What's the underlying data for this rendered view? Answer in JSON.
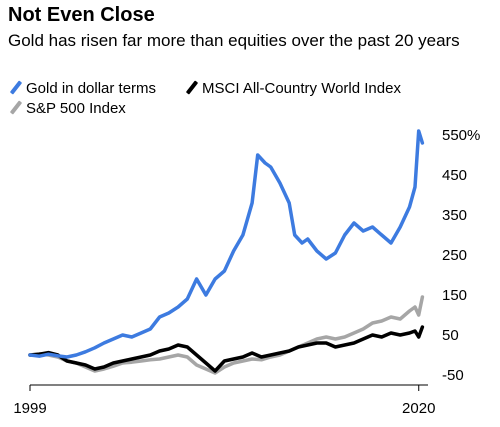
{
  "header": {
    "title": "Not Even Close",
    "subtitle": "Gold has risen far more than equities over the past 20 years"
  },
  "colors": {
    "gold": "#3d7be0",
    "msci": "#000000",
    "sp500": "#a6a6a6",
    "axis": "#000000"
  },
  "chart_data": {
    "type": "line",
    "title": "Not Even Close",
    "subtitle": "Gold has risen far more than equities over the past 20 years",
    "xlabel": "",
    "ylabel": "",
    "xlim": [
      1999,
      2020.5
    ],
    "ylim": [
      -75,
      575
    ],
    "y_ticks": [
      550,
      450,
      350,
      250,
      150,
      50,
      -50
    ],
    "y_tick_labels": [
      "550%",
      "450",
      "350",
      "250",
      "150",
      "50",
      "-50"
    ],
    "x_tick_labels": [
      "1999",
      "2020"
    ],
    "x_ticks": [
      1999,
      2020
    ],
    "grid": false,
    "legend_position": "top-left",
    "series": [
      {
        "name": "Gold in dollar terms",
        "color": "#3d7be0",
        "x": [
          1999,
          1999.5,
          2000,
          2000.5,
          2001,
          2001.5,
          2002,
          2002.5,
          2003,
          2003.5,
          2004,
          2004.5,
          2005,
          2005.5,
          2006,
          2006.5,
          2007,
          2007.5,
          2008,
          2008.5,
          2009,
          2009.5,
          2010,
          2010.5,
          2011,
          2011.3,
          2011.7,
          2012,
          2012.5,
          2013,
          2013.3,
          2013.7,
          2014,
          2014.5,
          2015,
          2015.5,
          2016,
          2016.5,
          2017,
          2017.5,
          2018,
          2018.5,
          2019,
          2019.5,
          2019.8,
          2020,
          2020.2
        ],
        "y": [
          0,
          -3,
          2,
          -2,
          -5,
          0,
          8,
          18,
          30,
          40,
          50,
          45,
          55,
          65,
          95,
          105,
          120,
          140,
          190,
          150,
          190,
          210,
          260,
          300,
          380,
          500,
          480,
          470,
          430,
          380,
          300,
          280,
          290,
          260,
          240,
          255,
          300,
          330,
          310,
          320,
          300,
          280,
          320,
          370,
          420,
          560,
          530
        ]
      },
      {
        "name": "MSCI All-Country World Index",
        "color": "#000000",
        "x": [
          1999,
          1999.5,
          2000,
          2000.5,
          2001,
          2001.5,
          2002,
          2002.5,
          2003,
          2003.5,
          2004,
          2004.5,
          2005,
          2005.5,
          2006,
          2006.5,
          2007,
          2007.5,
          2008,
          2008.5,
          2009,
          2009.5,
          2010,
          2010.5,
          2011,
          2011.5,
          2012,
          2012.5,
          2013,
          2013.5,
          2014,
          2014.5,
          2015,
          2015.5,
          2016,
          2016.5,
          2017,
          2017.5,
          2018,
          2018.5,
          2019,
          2019.5,
          2019.8,
          2020,
          2020.2
        ],
        "y": [
          0,
          2,
          6,
          0,
          -15,
          -20,
          -25,
          -35,
          -30,
          -20,
          -15,
          -10,
          -5,
          0,
          10,
          15,
          25,
          20,
          0,
          -20,
          -40,
          -15,
          -10,
          -5,
          5,
          -5,
          0,
          5,
          10,
          20,
          25,
          30,
          30,
          20,
          25,
          30,
          40,
          50,
          45,
          55,
          50,
          55,
          60,
          45,
          70
        ]
      },
      {
        "name": "S&P 500 Index",
        "color": "#a6a6a6",
        "x": [
          1999,
          1999.5,
          2000,
          2000.5,
          2001,
          2001.5,
          2002,
          2002.5,
          2003,
          2003.5,
          2004,
          2004.5,
          2005,
          2005.5,
          2006,
          2006.5,
          2007,
          2007.5,
          2008,
          2008.5,
          2009,
          2009.5,
          2010,
          2010.5,
          2011,
          2011.5,
          2012,
          2012.5,
          2013,
          2013.5,
          2014,
          2014.5,
          2015,
          2015.5,
          2016,
          2016.5,
          2017,
          2017.5,
          2018,
          2018.5,
          2019,
          2019.5,
          2019.8,
          2020,
          2020.2
        ],
        "y": [
          0,
          3,
          0,
          -5,
          -15,
          -20,
          -30,
          -40,
          -35,
          -28,
          -20,
          -18,
          -15,
          -12,
          -10,
          -5,
          0,
          -5,
          -25,
          -35,
          -45,
          -30,
          -20,
          -15,
          -10,
          -12,
          -5,
          0,
          10,
          20,
          30,
          40,
          45,
          40,
          45,
          55,
          65,
          80,
          85,
          95,
          90,
          110,
          120,
          100,
          145
        ]
      }
    ]
  }
}
